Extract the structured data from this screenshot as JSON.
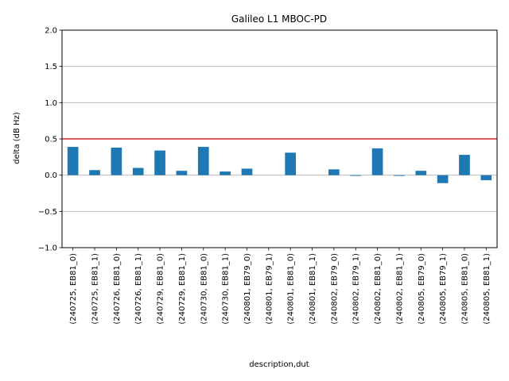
{
  "chart_data": {
    "type": "bar",
    "title": "Galileo L1 MBOC-PD",
    "xlabel": "description,dut",
    "ylabel": "delta (dB Hz)",
    "ylim": [
      -1.0,
      2.0
    ],
    "yticks": [
      -1.0,
      -0.5,
      0.0,
      0.5,
      1.0,
      1.5,
      2.0
    ],
    "ytick_labels": [
      "−1.0",
      "−0.5",
      "0.0",
      "0.5",
      "1.0",
      "1.5",
      "2.0"
    ],
    "grid": "horizontal",
    "bar_color": "#1f77b4",
    "reference_line": {
      "y": 0.5,
      "color": "#d62728"
    },
    "categories": [
      "(240725, EB81_0)",
      "(240725, EB81_1)",
      "(240726, EB81_0)",
      "(240726, EB81_1)",
      "(240729, EB81_0)",
      "(240729, EB81_1)",
      "(240730, EB81_0)",
      "(240730, EB81_1)",
      "(240801, EB79_0)",
      "(240801, EB79_1)",
      "(240801, EB81_0)",
      "(240801, EB81_1)",
      "(240802, EB79_0)",
      "(240802, EB79_1)",
      "(240802, EB81_0)",
      "(240802, EB81_1)",
      "(240805, EB79_0)",
      "(240805, EB79_1)",
      "(240805, EB81_0)",
      "(240805, EB81_1)"
    ],
    "values": [
      0.39,
      0.07,
      0.38,
      0.1,
      0.34,
      0.06,
      0.39,
      0.05,
      0.09,
      0.0,
      0.31,
      0.0,
      0.08,
      -0.01,
      0.37,
      -0.01,
      0.06,
      -0.11,
      0.28,
      -0.07
    ]
  }
}
